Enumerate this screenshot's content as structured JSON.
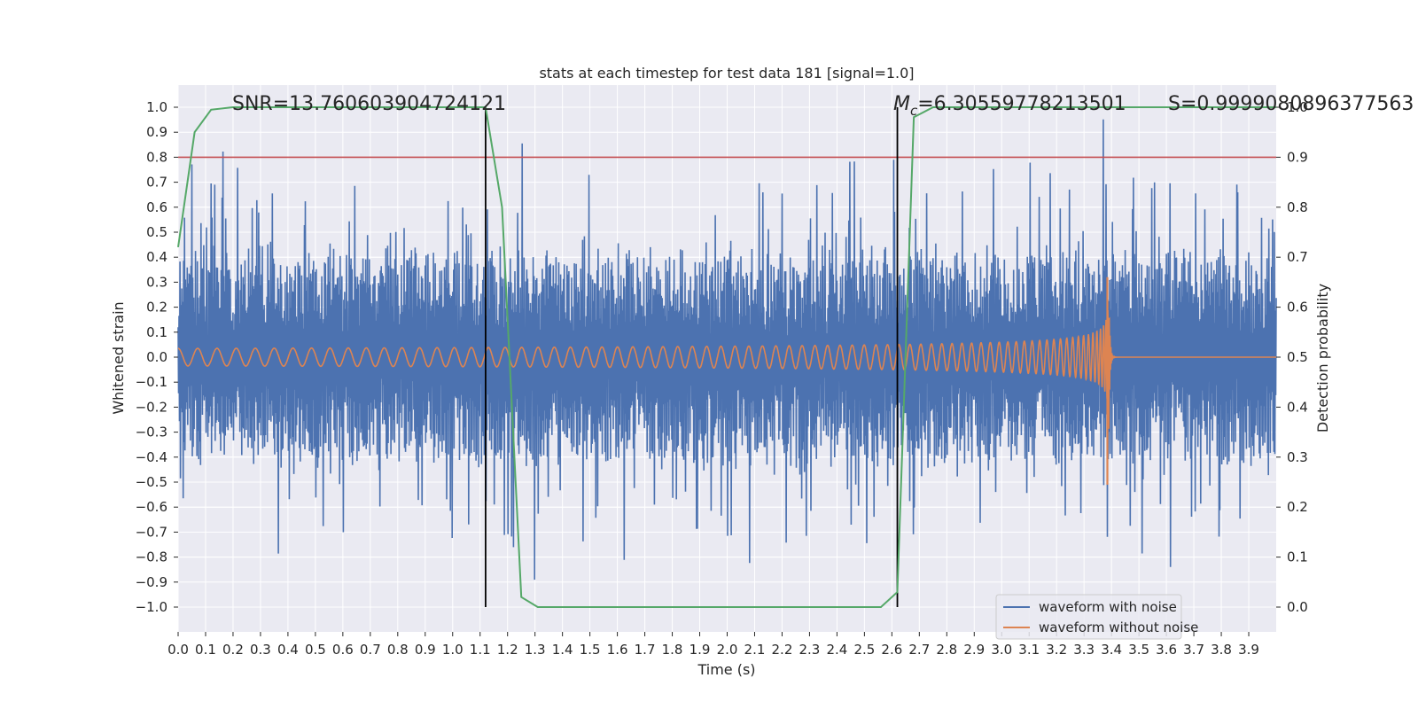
{
  "chart_data": {
    "type": "line",
    "title": "stats at each timestep for test data 181 [signal=1.0]",
    "xlabel": "Time (s)",
    "ylabel_left": "Whitened strain",
    "ylabel_right": "Detection probability",
    "xlim": [
      0.0,
      4.0
    ],
    "ylim_left": [
      -1.1,
      1.1
    ],
    "ylim_right": [
      -0.05,
      1.0
    ],
    "grid": true,
    "x_ticks": [
      "0.0",
      "0.1",
      "0.2",
      "0.3",
      "0.4",
      "0.5",
      "0.6",
      "0.7",
      "0.8",
      "0.9",
      "1.0",
      "1.1",
      "1.2",
      "1.3",
      "1.4",
      "1.5",
      "1.6",
      "1.7",
      "1.8",
      "1.9",
      "2.0",
      "2.1",
      "2.2",
      "2.3",
      "2.4",
      "2.5",
      "2.6",
      "2.7",
      "2.8",
      "2.9",
      "3.0",
      "3.1",
      "3.2",
      "3.3",
      "3.4",
      "3.5",
      "3.6",
      "3.7",
      "3.8",
      "3.9"
    ],
    "y_ticks_left": [
      "1.0",
      "0.9",
      "0.8",
      "0.7",
      "0.6",
      "0.5",
      "0.4",
      "0.3",
      "0.2",
      "0.1",
      "0.0",
      "−0.1",
      "−0.2",
      "−0.3",
      "−0.4",
      "−0.5",
      "−0.6",
      "−0.7",
      "−0.8",
      "−0.9",
      "−1.0"
    ],
    "y_ticks_right": [
      "1.0",
      "0.9",
      "0.8",
      "0.7",
      "0.6",
      "0.5",
      "0.4",
      "0.3",
      "0.2",
      "0.1",
      "0.0"
    ],
    "series": [
      {
        "name": "waveform with noise",
        "color": "#4c72b0",
        "description": "noisy whitened strain, amplitude ~0.4-0.9 over full 0-4 s"
      },
      {
        "name": "waveform without noise",
        "color": "#dd8452",
        "description": "chirp growing from ~0.04 at 0 s to ~0.3 at 3.38 s, merger then flat"
      },
      {
        "name": "detection probability",
        "color": "#55a868",
        "x": [
          0.0,
          0.06,
          0.12,
          0.2,
          1.12,
          1.18,
          1.25,
          1.31,
          2.56,
          2.62,
          2.68,
          2.75,
          4.0
        ],
        "y": [
          0.72,
          0.95,
          0.995,
          1.0,
          1.0,
          0.8,
          0.02,
          0.0,
          0.0,
          0.03,
          0.98,
          1.0,
          1.0
        ]
      }
    ],
    "threshold": {
      "value": 0.9,
      "axis": "right",
      "color": "#c44e52"
    },
    "vlines": [
      1.12,
      2.62
    ],
    "annotations": {
      "snr": "SNR=13.760603904724121",
      "mc_symbol": "M",
      "mc_sub": "c",
      "mc_value": "=6.30559778213501",
      "s": "S=0.9999080896377563"
    },
    "legend": {
      "placement": "lower-right",
      "entries": [
        {
          "label": "waveform with noise",
          "color": "#4c72b0"
        },
        {
          "label": "waveform without noise",
          "color": "#dd8452"
        }
      ]
    }
  }
}
